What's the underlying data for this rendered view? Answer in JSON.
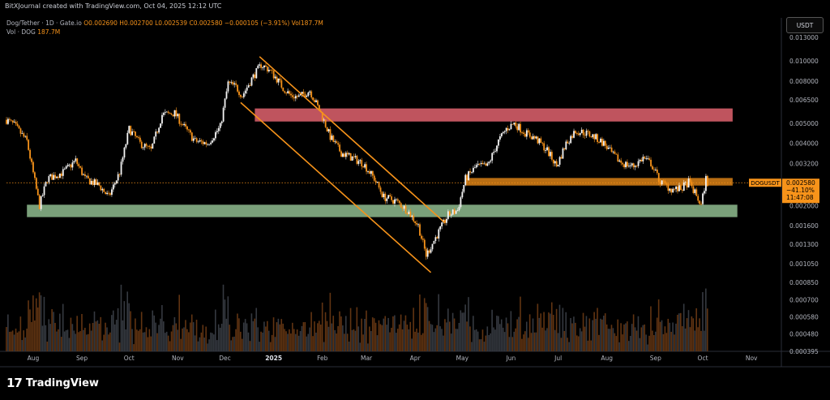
{
  "header": {
    "credit": "BitXJournal created with TradingView.com, Oct 04, 2025 12:12 UTC",
    "legend_title": "Dog/Tether · 1D · Gate.io",
    "legend_ohlc": "O0.002690 H0.002700 L0.002539 C0.002580 −0.000105 (−3.91%) Vol187.7M",
    "volume_label": "Vol · DOG",
    "volume_value": "187.7M",
    "currency_button": "USDT"
  },
  "footer": {
    "brand": "TradingView",
    "brand_mark": "17"
  },
  "colors": {
    "up": "#f5f5f5",
    "down": "#f7931a",
    "resistance_zone": "#e0636e",
    "support_zone": "#8fbc8f",
    "pivot_zone": "#f7931a",
    "channel": "#f7931a"
  },
  "price_tag": {
    "symbol": "DOGUSDT",
    "price": "0.002580",
    "change": "−41.10%",
    "countdown": "11:47:08"
  },
  "chart_data": {
    "type": "candlestick",
    "title": "",
    "xlabel": "",
    "ylabel": "",
    "yscale": "log",
    "ylim": [
      0.000395,
      0.0135
    ],
    "y_tick_labels": [
      "0.013000",
      "0.010000",
      "0.008000",
      "0.006500",
      "0.005000",
      "0.004000",
      "0.003200",
      "0.002000",
      "0.001600",
      "0.001300",
      "0.001050",
      "0.000850",
      "0.000700",
      "0.000580",
      "0.000480",
      "0.000395"
    ],
    "y_tick_values": [
      0.013,
      0.01,
      0.008,
      0.0065,
      0.005,
      0.004,
      0.0032,
      0.002,
      0.0016,
      0.0013,
      0.00105,
      0.00085,
      0.0007,
      0.00058,
      0.00048,
      0.000395
    ],
    "x_tick_labels": [
      "Aug",
      "Sep",
      "Oct",
      "Nov",
      "Dec",
      "2025",
      "Feb",
      "Mar",
      "Apr",
      "May",
      "Jun",
      "Jul",
      "Aug",
      "Sep",
      "Oct",
      "Nov"
    ],
    "x_tick_dates": [
      "2024-08-01",
      "2024-09-01",
      "2024-10-01",
      "2024-11-01",
      "2024-12-01",
      "2025-01-01",
      "2025-02-01",
      "2025-03-01",
      "2025-04-01",
      "2025-05-01",
      "2025-06-01",
      "2025-07-01",
      "2025-08-01",
      "2025-09-01",
      "2025-10-01",
      "2025-11-01"
    ],
    "xlim": [
      "2024-07-15",
      "2025-11-20"
    ],
    "close_path": [
      [
        "2024-07-15",
        0.0052
      ],
      [
        "2024-07-20",
        0.0049
      ],
      [
        "2024-07-28",
        0.0041
      ],
      [
        "2024-08-05",
        0.002
      ],
      [
        "2024-08-10",
        0.0027
      ],
      [
        "2024-08-20",
        0.0029
      ],
      [
        "2024-08-28",
        0.0033
      ],
      [
        "2024-09-03",
        0.0027
      ],
      [
        "2024-09-12",
        0.0025
      ],
      [
        "2024-09-18",
        0.0022
      ],
      [
        "2024-09-25",
        0.0029
      ],
      [
        "2024-10-01",
        0.0047
      ],
      [
        "2024-10-08",
        0.004
      ],
      [
        "2024-10-15",
        0.0037
      ],
      [
        "2024-10-22",
        0.0055
      ],
      [
        "2024-10-30",
        0.0056
      ],
      [
        "2024-11-05",
        0.0048
      ],
      [
        "2024-11-12",
        0.0041
      ],
      [
        "2024-11-20",
        0.004
      ],
      [
        "2024-11-28",
        0.0048
      ],
      [
        "2024-12-03",
        0.0078
      ],
      [
        "2024-12-08",
        0.0075
      ],
      [
        "2024-12-12",
        0.0068
      ],
      [
        "2024-12-18",
        0.0082
      ],
      [
        "2024-12-24",
        0.0096
      ],
      [
        "2024-12-29",
        0.0091
      ],
      [
        "2025-01-03",
        0.0082
      ],
      [
        "2025-01-07",
        0.0074
      ],
      [
        "2025-01-12",
        0.0068
      ],
      [
        "2025-01-17",
        0.0067
      ],
      [
        "2025-01-24",
        0.0072
      ],
      [
        "2025-01-31",
        0.0056
      ],
      [
        "2025-02-06",
        0.0043
      ],
      [
        "2025-02-13",
        0.0036
      ],
      [
        "2025-02-20",
        0.0034
      ],
      [
        "2025-02-27",
        0.0032
      ],
      [
        "2025-03-06",
        0.0027
      ],
      [
        "2025-03-12",
        0.0022
      ],
      [
        "2025-03-20",
        0.0021
      ],
      [
        "2025-03-27",
        0.0019
      ],
      [
        "2025-04-03",
        0.0016
      ],
      [
        "2025-04-08",
        0.00115
      ],
      [
        "2025-04-14",
        0.0014
      ],
      [
        "2025-04-22",
        0.0018
      ],
      [
        "2025-04-28",
        0.0019
      ],
      [
        "2025-05-03",
        0.0027
      ],
      [
        "2025-05-10",
        0.0031
      ],
      [
        "2025-05-17",
        0.0031
      ],
      [
        "2025-05-24",
        0.0041
      ],
      [
        "2025-05-29",
        0.0047
      ],
      [
        "2025-06-03",
        0.005
      ],
      [
        "2025-06-10",
        0.0045
      ],
      [
        "2025-06-17",
        0.0042
      ],
      [
        "2025-06-24",
        0.0037
      ],
      [
        "2025-06-30",
        0.0031
      ],
      [
        "2025-07-06",
        0.004
      ],
      [
        "2025-07-12",
        0.0046
      ],
      [
        "2025-07-18",
        0.0045
      ],
      [
        "2025-07-24",
        0.0043
      ],
      [
        "2025-07-30",
        0.004
      ],
      [
        "2025-08-05",
        0.0035
      ],
      [
        "2025-08-11",
        0.0032
      ],
      [
        "2025-08-18",
        0.0031
      ],
      [
        "2025-08-24",
        0.0034
      ],
      [
        "2025-08-29",
        0.0032
      ],
      [
        "2025-09-04",
        0.0026
      ],
      [
        "2025-09-11",
        0.0024
      ],
      [
        "2025-09-17",
        0.0024
      ],
      [
        "2025-09-22",
        0.0026
      ],
      [
        "2025-09-26",
        0.0023
      ],
      [
        "2025-09-30",
        0.002
      ],
      [
        "2025-10-03",
        0.0027
      ],
      [
        "2025-10-04",
        0.00258
      ]
    ],
    "zones": [
      {
        "kind": "resistance",
        "start": "2024-12-20",
        "end": "2025-10-20",
        "low": 0.0051,
        "high": 0.0059
      },
      {
        "kind": "pivot",
        "start": "2025-05-03",
        "end": "2025-10-20",
        "low": 0.0025,
        "high": 0.00272
      },
      {
        "kind": "support",
        "start": "2024-07-28",
        "end": "2025-10-23",
        "low": 0.00176,
        "high": 0.00202
      }
    ],
    "channel": [
      {
        "from": [
          "2024-12-23",
          0.0105
        ],
        "to": [
          "2025-04-20",
          0.00165
        ]
      },
      {
        "from": [
          "2024-12-11",
          0.0063
        ],
        "to": [
          "2025-04-11",
          0.00095
        ]
      }
    ],
    "last_price": 0.00258
  }
}
